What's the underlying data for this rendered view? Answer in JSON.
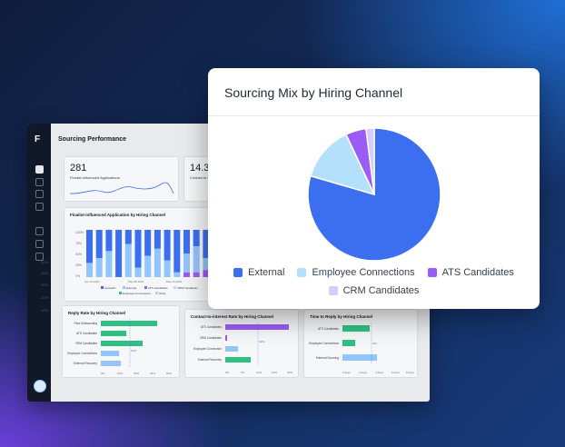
{
  "dashboard": {
    "title": "Sourcing Performance",
    "kpis": [
      {
        "value": "281",
        "label": "Finalist-influenced Applications"
      },
      {
        "value": "14.3",
        "label": "Contact to I..."
      }
    ],
    "mid_chart": {
      "title": "Finalist-influenced Application by Hiring Channel",
      "yticks": [
        "100%",
        "75%",
        "50%",
        "25%",
        "0%"
      ],
      "xticks": [
        "Apr 15 2024",
        "May 06 2024",
        "May 20 2024",
        "Jun 10 2024"
      ],
      "legend": [
        "Outreach",
        "External",
        "ATS Candidates",
        "CRM Candidates",
        "Employee Connections",
        "Other"
      ]
    },
    "reply_chart": {
      "title": "Reply Rate by Hiring Channel",
      "categories": [
        "Past Outbounding",
        "ATS Candidates",
        "CRM Candidates",
        "Employee Connections",
        "External Recovery"
      ],
      "xticks": [
        "0%",
        "15%",
        "30%",
        "45%",
        "60%"
      ],
      "avg_label": "16%"
    },
    "contact_chart": {
      "title": "Contact-to-interest Rate by Hiring Channel",
      "categories": [
        "ATS Candidates",
        "CRM Candidates",
        "Employee Connection",
        "External Recovery"
      ],
      "xticks": [
        "0%",
        "5%",
        "10%",
        "15%",
        "20%"
      ],
      "avg_label": "10%"
    },
    "time_chart": {
      "title": "Time to Reply by Hiring Channel",
      "categories": [
        "ATS Candidates",
        "Employee Connections",
        "External Sourcing"
      ],
      "xticks": [
        "0 days",
        "2 days",
        "4 days",
        "6 days",
        "8 days"
      ],
      "avg_label": "N/A"
    },
    "rail_labels": [
      "50%",
      "40%",
      "30%",
      "20%",
      "10%"
    ]
  },
  "modal": {
    "title": "Sourcing Mix by Hiring Channel"
  },
  "chart_data": {
    "type": "pie",
    "title": "Sourcing Mix by Hiring Channel",
    "categories": [
      "External",
      "Employee Connections",
      "ATS Candidates",
      "CRM Candidates"
    ],
    "values": [
      79.5,
      13.5,
      5,
      2
    ],
    "colors": [
      "#3b6ff0",
      "#b3e0fb",
      "#9b5cf6",
      "#d5ccff"
    ],
    "legend_position": "bottom"
  }
}
